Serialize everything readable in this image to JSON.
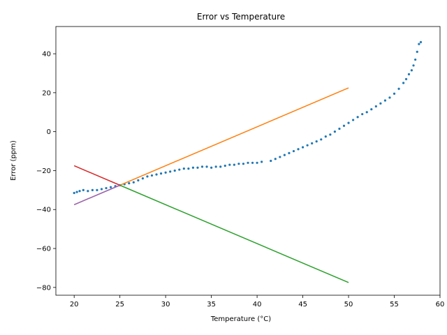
{
  "chart_data": {
    "type": "scatter",
    "title": "Error vs Temperature",
    "xlabel": "Temperature (°C)",
    "ylabel": "Error (ppm)",
    "xlim": [
      18,
      60
    ],
    "ylim": [
      -84,
      54
    ],
    "xticks": [
      20,
      25,
      30,
      35,
      40,
      45,
      50,
      55,
      60
    ],
    "yticks": [
      -80,
      -60,
      -40,
      -20,
      0,
      20,
      40
    ],
    "grid": false,
    "series": [
      {
        "kind": "scatter",
        "color": "#1f77b4",
        "x": [
          20.0,
          20.3,
          20.6,
          21.0,
          21.5,
          22.0,
          22.5,
          23.0,
          23.5,
          24.0,
          24.5,
          25.0,
          25.5,
          26.0,
          26.5,
          27.0,
          27.5,
          28.0,
          28.5,
          29.0,
          29.5,
          30.0,
          30.5,
          31.0,
          31.5,
          32.0,
          32.5,
          33.0,
          33.5,
          34.0,
          34.5,
          35.0,
          35.5,
          36.0,
          36.5,
          37.0,
          37.5,
          38.0,
          38.5,
          39.0,
          39.5,
          40.0,
          40.5,
          41.5,
          42.0,
          42.5,
          43.0,
          43.5,
          44.0,
          44.5,
          45.0,
          45.5,
          46.0,
          46.5,
          47.0,
          47.5,
          48.0,
          48.5,
          49.0,
          49.5,
          50.0,
          50.5,
          51.0,
          51.5,
          52.0,
          52.5,
          53.0,
          53.5,
          54.0,
          54.5,
          55.0,
          55.5,
          56.0,
          56.3,
          56.6,
          56.9,
          57.1,
          57.3,
          57.5,
          57.7,
          57.9
        ],
        "y": [
          -31.5,
          -31.0,
          -30.5,
          -30.0,
          -30.5,
          -30.0,
          -30.0,
          -29.5,
          -29.0,
          -28.5,
          -28.0,
          -27.5,
          -27.0,
          -26.5,
          -26.0,
          -25.0,
          -24.0,
          -23.0,
          -22.5,
          -22.0,
          -21.5,
          -21.0,
          -20.5,
          -20.0,
          -19.5,
          -19.0,
          -19.0,
          -18.5,
          -18.5,
          -18.0,
          -18.0,
          -18.5,
          -18.0,
          -18.0,
          -17.5,
          -17.0,
          -17.0,
          -16.5,
          -16.5,
          -16.0,
          -16.0,
          -16.0,
          -15.5,
          -15.0,
          -14.0,
          -13.0,
          -12.0,
          -11.0,
          -10.0,
          -9.0,
          -8.0,
          -7.0,
          -6.0,
          -5.0,
          -4.0,
          -2.5,
          -1.5,
          0.0,
          1.5,
          3.0,
          4.5,
          6.0,
          7.5,
          9.0,
          10.0,
          11.5,
          13.0,
          14.5,
          16.0,
          17.5,
          19.5,
          22.0,
          25.0,
          27.0,
          29.5,
          31.5,
          34.0,
          37.0,
          41.0,
          45.0,
          46.0
        ]
      },
      {
        "kind": "line",
        "color": "#ff7f0e",
        "x": [
          20,
          50
        ],
        "y": [
          -37.5,
          22.5
        ]
      },
      {
        "kind": "line",
        "color": "#2ca02c",
        "x": [
          25,
          50
        ],
        "y": [
          -27.5,
          -77.5
        ]
      },
      {
        "kind": "line",
        "color": "#d62728",
        "x": [
          20,
          25
        ],
        "y": [
          -17.5,
          -27.5
        ]
      },
      {
        "kind": "line",
        "color": "#9467bd",
        "x": [
          20,
          25
        ],
        "y": [
          -37.5,
          -27.5
        ]
      }
    ]
  }
}
